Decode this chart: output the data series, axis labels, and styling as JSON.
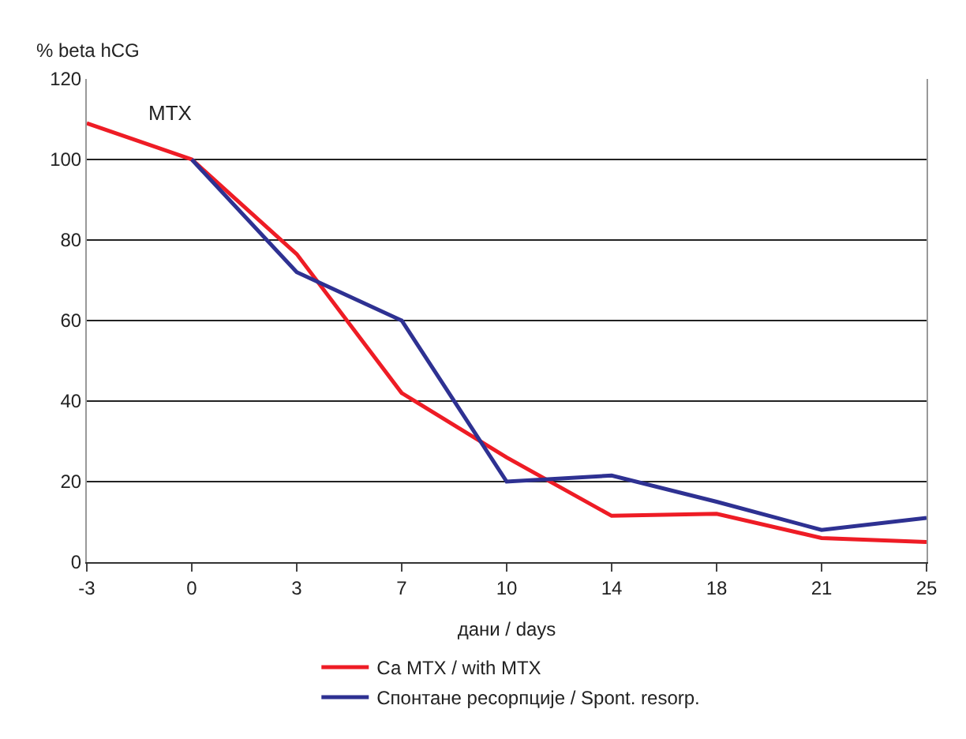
{
  "chart_data": {
    "type": "line",
    "categories": [
      "-3",
      "0",
      "3",
      "7",
      "10",
      "14",
      "18",
      "21",
      "25"
    ],
    "series": [
      {
        "name": "Са MTX / with MTX",
        "color": "#ee1c25",
        "values": [
          109,
          100,
          76.5,
          42,
          26,
          11.5,
          12,
          6,
          5
        ]
      },
      {
        "name": "Спонтане ресорпције / Spont. resorp.",
        "color": "#2e3192",
        "values": [
          null,
          100,
          72,
          60,
          20,
          21.5,
          15,
          8,
          11
        ]
      }
    ],
    "ylabel": "% beta hCG",
    "xlabel": "дани / days",
    "annotations": [
      "MTX"
    ],
    "ylim": [
      0,
      120
    ],
    "yticks": [
      0,
      20,
      40,
      60,
      80,
      100,
      120
    ],
    "grid": "y",
    "legend": "bottom"
  }
}
